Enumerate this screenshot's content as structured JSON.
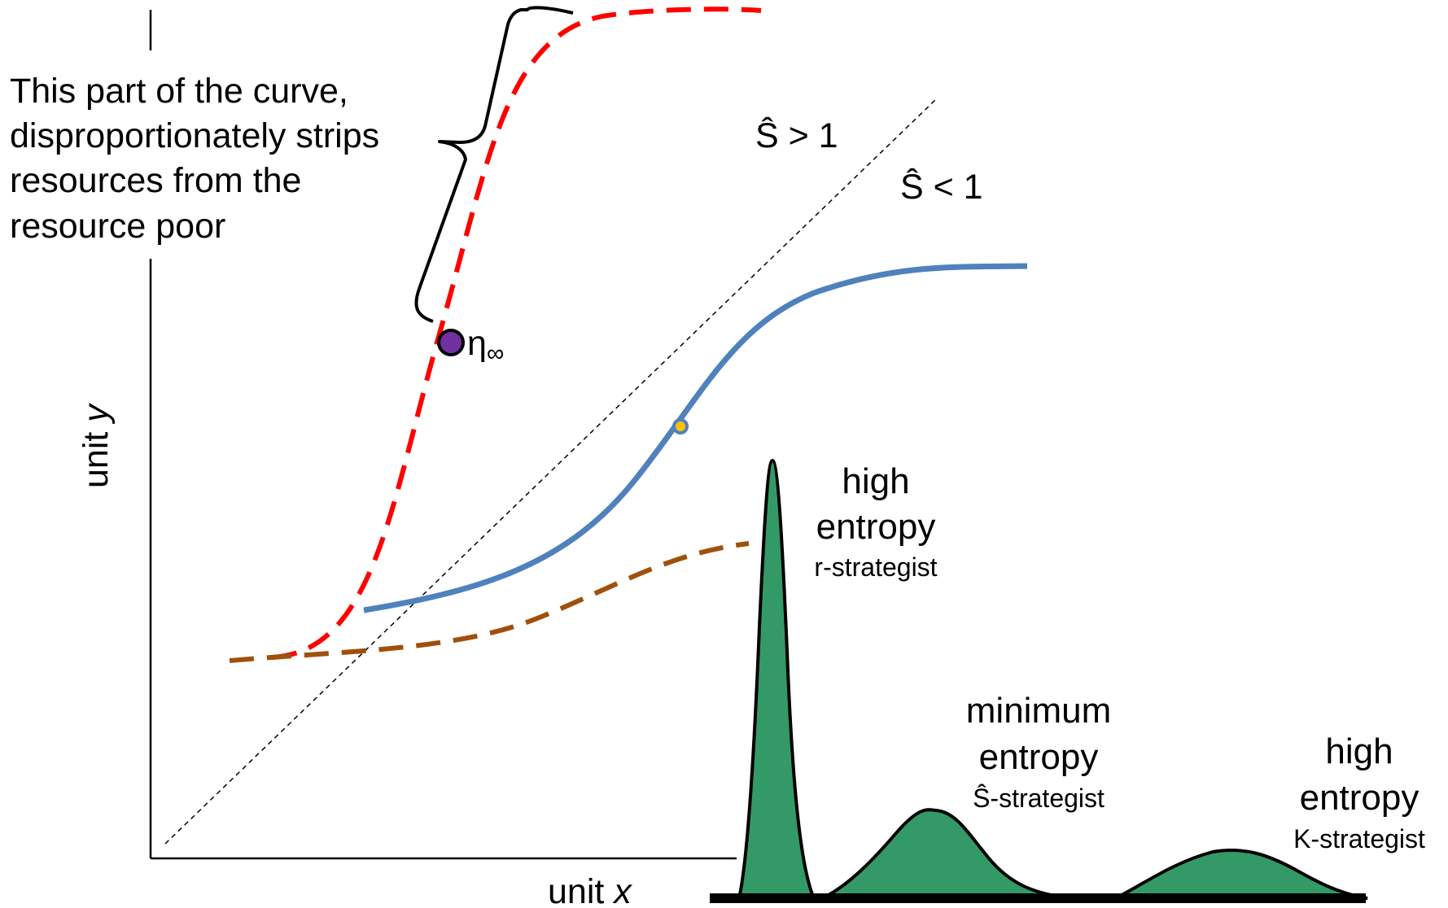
{
  "annotation": {
    "lines": [
      "This part of the curve,",
      "disproportionately strips",
      "resources from the",
      "resource poor"
    ]
  },
  "axes": {
    "y_label_prefix": "unit ",
    "y_label_var": "y",
    "x_label_prefix": "unit ",
    "x_label_var": "x"
  },
  "regions": {
    "above": "Ŝ > 1",
    "below": "Ŝ < 1"
  },
  "point_label": {
    "symbol": "η",
    "subscript": "∞"
  },
  "distributions": [
    {
      "line1": "high",
      "line2": "entropy",
      "line3": "r-strategist",
      "color": "#339966"
    },
    {
      "line1": "minimum",
      "line2": "entropy",
      "line3": "Ŝ-strategist",
      "color": "#339966"
    },
    {
      "line1": "high",
      "line2": "entropy",
      "line3": "K-strategist",
      "color": "#339966"
    }
  ],
  "colors": {
    "red_curve": "#ff0000",
    "blue_curve": "#4f81bd",
    "brown_curve": "#a0500a",
    "eta_point": "#7030a0",
    "mid_point": "#ffc000",
    "fill": "#339966"
  }
}
